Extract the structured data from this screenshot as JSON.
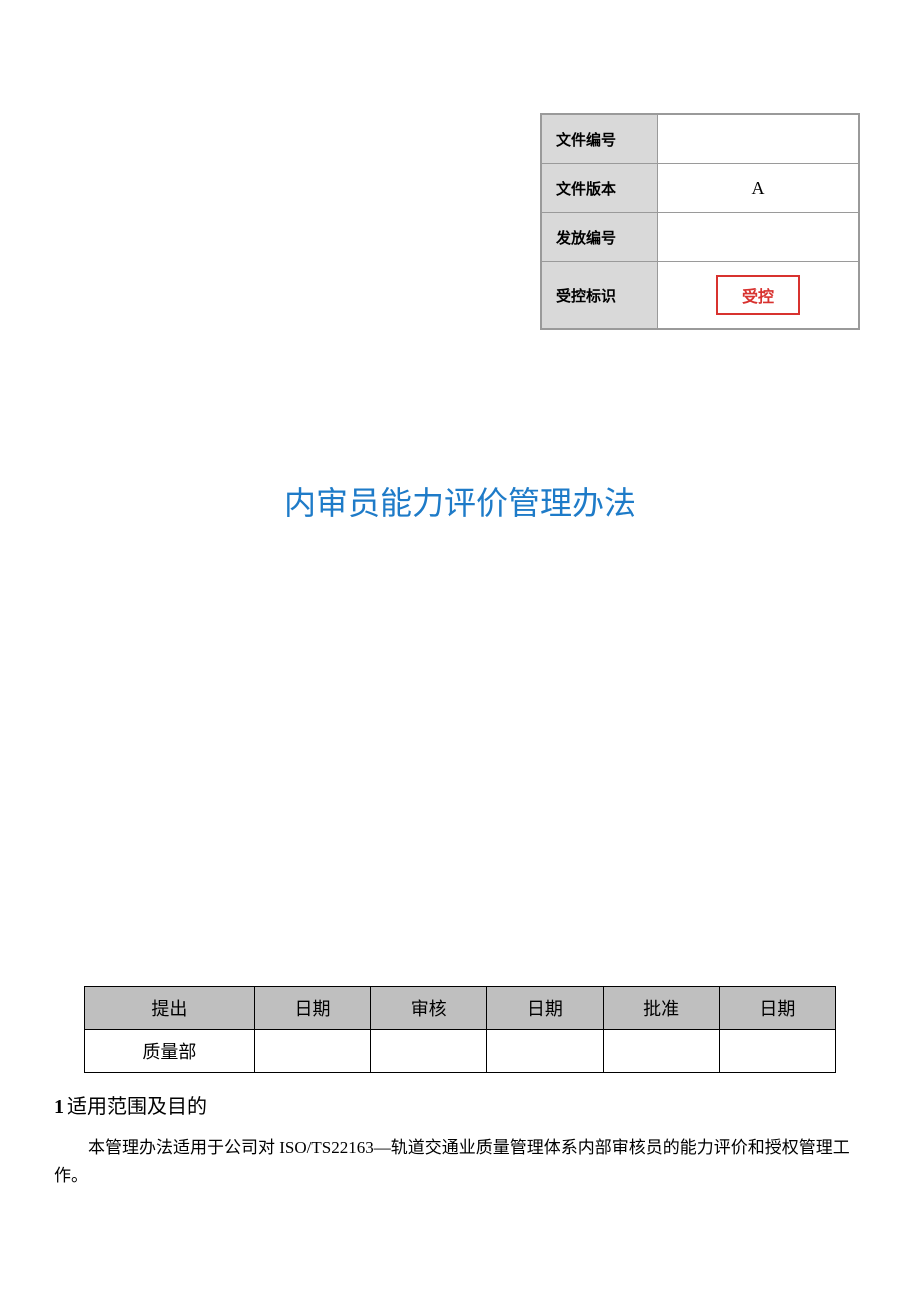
{
  "info_table": {
    "rows": [
      {
        "label": "文件编号",
        "value": ""
      },
      {
        "label": "文件版本",
        "value": "A"
      },
      {
        "label": "发放编号",
        "value": ""
      },
      {
        "label": "受控标识",
        "value": "受控",
        "stamp": true
      }
    ],
    "label_bg_color": "#d9d9d9",
    "border_color": "#9a9a9a",
    "stamp_color": "#d8322f"
  },
  "title": "内审员能力评价管理办法",
  "title_color": "#1e7bc8",
  "title_fontsize": 32,
  "sign_table": {
    "headers": [
      "提出",
      "日期",
      "审核",
      "日期",
      "批准",
      "日期"
    ],
    "row": [
      "质量部",
      "",
      "",
      "",
      "",
      ""
    ],
    "header_bg_color": "#bfbfbf"
  },
  "section1": {
    "number": "1",
    "heading": "适用范围及目的",
    "body": "本管理办法适用于公司对 ISO/TS22163—轨道交通业质量管理体系内部审核员的能力评价和授权管理工作。"
  },
  "page_bg_color": "#ffffff"
}
